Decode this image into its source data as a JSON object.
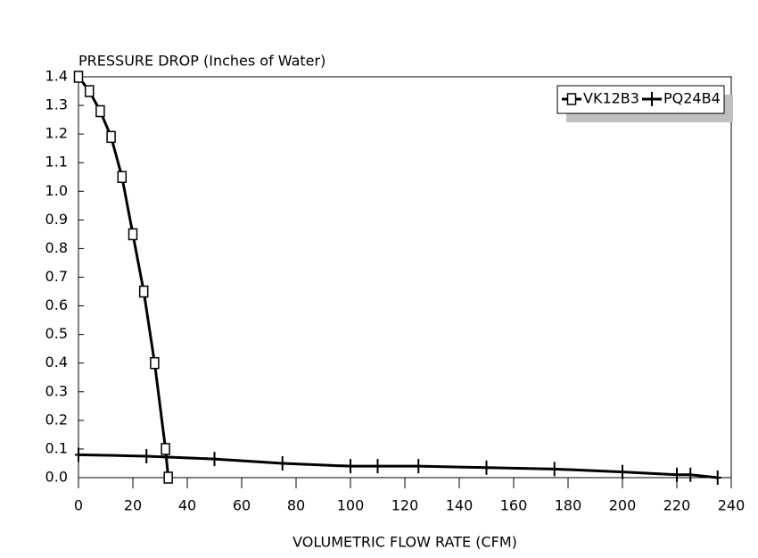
{
  "chart_data": {
    "type": "line",
    "title": "PRESSURE DROP (Inches of Water)",
    "xlabel": "VOLUMETRIC FLOW RATE (CFM)",
    "xlim": [
      0,
      240
    ],
    "xticks": [
      0,
      20,
      40,
      60,
      80,
      100,
      120,
      140,
      160,
      180,
      200,
      220,
      240
    ],
    "ylim": [
      0,
      1.4
    ],
    "yticks": [
      {
        "value": 0,
        "label": "0.0"
      },
      0.1,
      0.2,
      0.3,
      0.4,
      0.5,
      0.6,
      0.7,
      0.8,
      0.9,
      {
        "value": 1,
        "label": "1.0"
      },
      1.1,
      1.2,
      1.3,
      1.4
    ],
    "legend": "upper right",
    "series": [
      {
        "name": "VK12B3",
        "color": "#000000",
        "marker": "square",
        "x": [
          0,
          4,
          8,
          12,
          16,
          20,
          24,
          28,
          32,
          33
        ],
        "values": [
          1.4,
          1.35,
          1.28,
          1.19,
          1.05,
          0.85,
          0.65,
          0.4,
          0.1,
          0.0
        ]
      },
      {
        "name": "PQ24B4",
        "color": "#000000",
        "marker": "plus",
        "x": [
          0,
          25,
          50,
          75,
          100,
          110,
          125,
          150,
          175,
          200,
          220,
          225,
          235
        ],
        "values": [
          0.08,
          0.075,
          0.065,
          0.05,
          0.04,
          0.04,
          0.04,
          0.035,
          0.03,
          0.02,
          0.01,
          0.01,
          0.0
        ]
      }
    ]
  }
}
